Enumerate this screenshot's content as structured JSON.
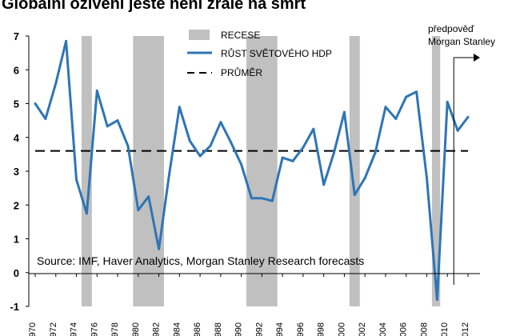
{
  "chart_data": {
    "type": "line",
    "title": "Globální oživení ještě není zralé na smrt",
    "xlabel": "",
    "ylabel": "",
    "ylim": [
      -1,
      7
    ],
    "xlim": [
      1970,
      2012
    ],
    "y_ticks": [
      -1,
      0,
      1,
      2,
      3,
      4,
      5,
      6,
      7
    ],
    "x_ticks": [
      1970,
      1972,
      1974,
      1976,
      1978,
      1980,
      1982,
      1984,
      1986,
      1988,
      1990,
      1992,
      1994,
      1996,
      1998,
      2000,
      2002,
      2004,
      2006,
      2008,
      2010,
      2012
    ],
    "grid": false,
    "legend_position": "top",
    "legend": {
      "recession_label": "RECESE",
      "growth_label": "RŮST SVĚTOVÉHO HDP",
      "average_label": "PRŮMĚR"
    },
    "series": [
      {
        "name": "RŮST SVĚTOVÉHO HDP",
        "x": [
          1970,
          1971,
          1972,
          1973,
          1974,
          1975,
          1976,
          1977,
          1978,
          1979,
          1980,
          1981,
          1982,
          1983,
          1984,
          1985,
          1986,
          1987,
          1988,
          1989,
          1990,
          1991,
          1992,
          1993,
          1994,
          1995,
          1996,
          1997,
          1998,
          1999,
          2000,
          2001,
          2002,
          2003,
          2004,
          2005,
          2006,
          2007,
          2008,
          2009,
          2010,
          2011,
          2012
        ],
        "values": [
          5.0,
          4.55,
          5.6,
          6.85,
          2.75,
          1.75,
          5.38,
          4.33,
          4.5,
          3.75,
          1.85,
          2.25,
          0.7,
          2.9,
          4.9,
          3.9,
          3.45,
          3.75,
          4.45,
          3.85,
          3.2,
          2.2,
          2.2,
          2.12,
          3.4,
          3.3,
          3.7,
          4.25,
          2.6,
          3.55,
          4.75,
          2.3,
          2.8,
          3.55,
          4.9,
          4.55,
          5.2,
          5.35,
          2.8,
          -0.8,
          5.05,
          4.2,
          4.6
        ]
      },
      {
        "name": "PRŮMĚR",
        "x": [
          1970,
          2012
        ],
        "values": [
          3.6,
          3.6
        ]
      }
    ],
    "recessions": [
      {
        "start": 1974.5,
        "end": 1975.5
      },
      {
        "start": 1979.5,
        "end": 1982.5
      },
      {
        "start": 1990.5,
        "end": 1993.5
      },
      {
        "start": 2000.5,
        "end": 2001.5
      },
      {
        "start": 2008.5,
        "end": 2009.3
      }
    ],
    "forecast": {
      "start_year": 2010.0,
      "label_line1": "předpověď",
      "label_line2": "Morgan Stanley"
    },
    "source": "Source: IMF, Haver Analytics, Morgan Stanley Research forecasts",
    "colors": {
      "line": "#2e75b6",
      "recession": "#c0c0c0",
      "average": "#000000"
    }
  }
}
